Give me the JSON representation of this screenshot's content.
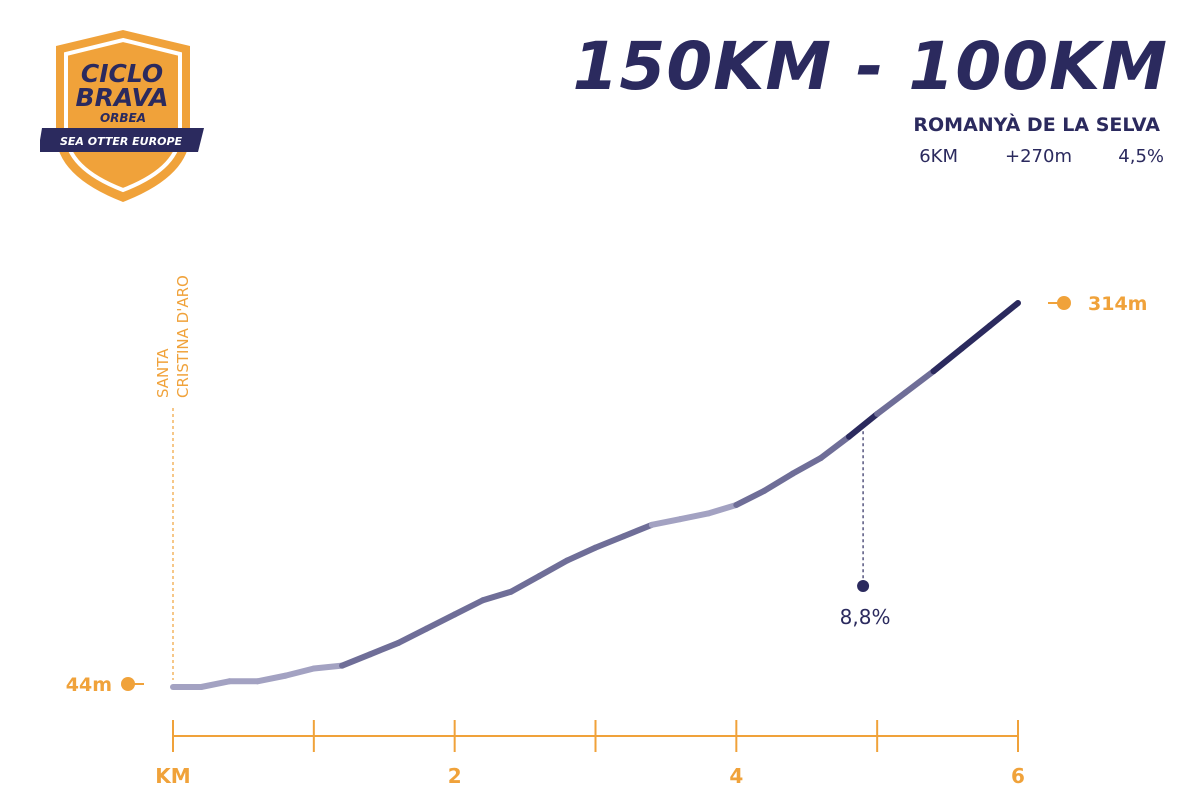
{
  "logo": {
    "line1": "CICLO",
    "line2": "BRAVA",
    "brand": "ORBEA",
    "banner": "SEA OTTER EUROPE"
  },
  "header": {
    "title": "150KM - 100KM",
    "climb_name": "ROMANYÀ DE LA SELVA",
    "distance": "6KM",
    "elevation_gain": "+270m",
    "avg_grade": "4,5%"
  },
  "colors": {
    "navy": "#2b2a5e",
    "orange": "#f0a23a",
    "line_light": "#a3a2c2",
    "line_mid": "#6f6e98",
    "line_dark": "#2b2a5e"
  },
  "chart_data": {
    "type": "line",
    "x_unit": "KM",
    "xlim": [
      0,
      6
    ],
    "x_ticks": [
      0,
      1,
      2,
      3,
      4,
      5,
      6
    ],
    "x_tick_labels": [
      "KM",
      "",
      "2",
      "",
      "4",
      "",
      "6"
    ],
    "ylim": [
      44,
      314
    ],
    "start": {
      "name": "SANTA CRISTINA D'ARO",
      "km": 0,
      "elevation_label": "44m"
    },
    "end": {
      "km": 6,
      "elevation_label": "314m"
    },
    "annotation": {
      "km": 4.9,
      "label": "8,8%"
    },
    "profile": [
      {
        "km": 0.0,
        "ele": 44
      },
      {
        "km": 0.2,
        "ele": 44
      },
      {
        "km": 0.4,
        "ele": 48
      },
      {
        "km": 0.6,
        "ele": 48
      },
      {
        "km": 0.8,
        "ele": 52
      },
      {
        "km": 1.0,
        "ele": 57
      },
      {
        "km": 1.2,
        "ele": 59
      },
      {
        "km": 1.4,
        "ele": 67
      },
      {
        "km": 1.6,
        "ele": 75
      },
      {
        "km": 1.8,
        "ele": 85
      },
      {
        "km": 2.0,
        "ele": 95
      },
      {
        "km": 2.2,
        "ele": 105
      },
      {
        "km": 2.4,
        "ele": 111
      },
      {
        "km": 2.6,
        "ele": 122
      },
      {
        "km": 2.8,
        "ele": 133
      },
      {
        "km": 3.0,
        "ele": 142
      },
      {
        "km": 3.2,
        "ele": 150
      },
      {
        "km": 3.4,
        "ele": 158
      },
      {
        "km": 3.6,
        "ele": 162
      },
      {
        "km": 3.8,
        "ele": 166
      },
      {
        "km": 4.0,
        "ele": 172
      },
      {
        "km": 4.2,
        "ele": 182
      },
      {
        "km": 4.4,
        "ele": 194
      },
      {
        "km": 4.6,
        "ele": 205
      },
      {
        "km": 4.8,
        "ele": 220
      },
      {
        "km": 5.0,
        "ele": 236
      },
      {
        "km": 5.2,
        "ele": 251
      },
      {
        "km": 5.4,
        "ele": 266
      },
      {
        "km": 5.6,
        "ele": 282
      },
      {
        "km": 5.8,
        "ele": 298
      },
      {
        "km": 6.0,
        "ele": 314
      }
    ]
  }
}
